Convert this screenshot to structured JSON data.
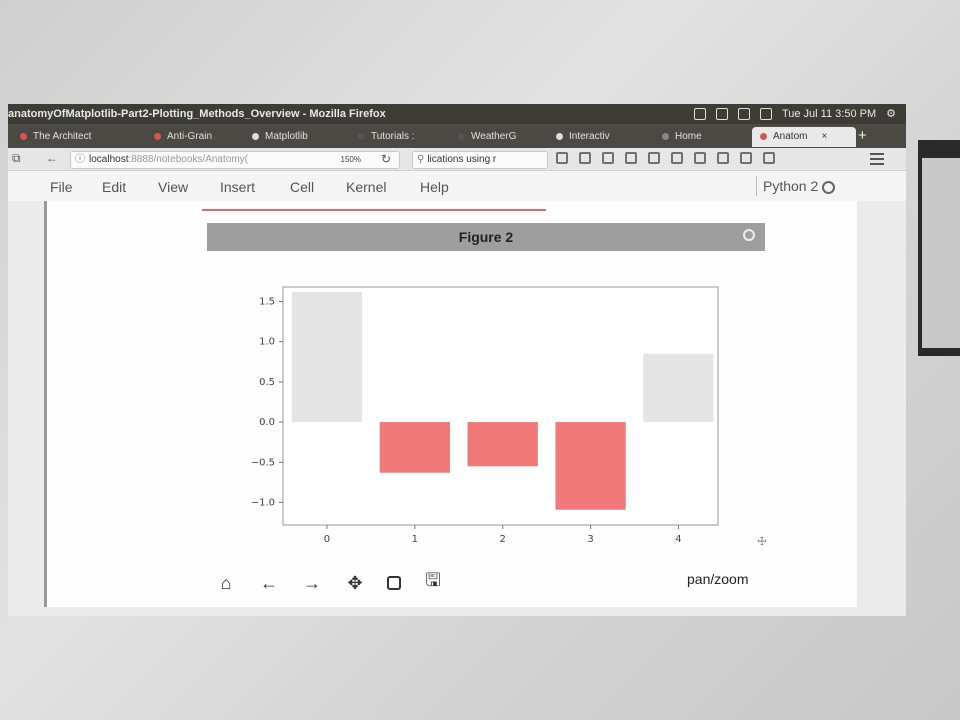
{
  "window": {
    "title": "anatomyOfMatplotlib-Part2-Plotting_Methods_Overview - Mozilla Firefox"
  },
  "system_tray": {
    "datetime": "Tue Jul 11  3:50 PM"
  },
  "tabs": [
    {
      "label": "The Architect",
      "color": "#d9544f"
    },
    {
      "label": "Anti-Grain",
      "color": "#d9544f"
    },
    {
      "label": "Matplotlib",
      "color": "#dddddd"
    },
    {
      "label": "Tutorials :",
      "color": "#555555"
    },
    {
      "label": "WeatherG",
      "color": "#555555"
    },
    {
      "label": "Interactiv",
      "color": "#dddddd"
    },
    {
      "label": "Home",
      "color": "#888888"
    },
    {
      "label": "Anatom",
      "color": "#d9544f",
      "active": true
    }
  ],
  "address_bar": {
    "host": "localhost",
    "path": ":8888/notebooks/Anatomy(",
    "zoom": "150%"
  },
  "search_bar": {
    "value": "lications using r"
  },
  "notebook_menu": {
    "items": [
      "File",
      "Edit",
      "View",
      "Insert",
      "Cell",
      "Kernel",
      "Help"
    ],
    "kernel": "Python 2"
  },
  "figure": {
    "title": "Figure 2",
    "mode": "pan/zoom",
    "hover_readout": "☩"
  },
  "chart_data": {
    "type": "bar",
    "categories": [
      "0",
      "1",
      "2",
      "3",
      "4"
    ],
    "values": [
      1.62,
      -0.63,
      -0.55,
      -1.09,
      0.85
    ],
    "colors": [
      "#e4e4e4",
      "#f07878",
      "#f07878",
      "#f07878",
      "#e4e4e4"
    ],
    "yticks": [
      -1.0,
      -0.5,
      0.0,
      0.5,
      1.0,
      1.5
    ],
    "ytick_labels": [
      "−1.0",
      "−0.5",
      "0.0",
      "0.5",
      "1.0",
      "1.5"
    ],
    "ylim": [
      -1.28,
      1.68
    ],
    "xlim": [
      -0.5,
      4.45
    ],
    "grid": false
  }
}
